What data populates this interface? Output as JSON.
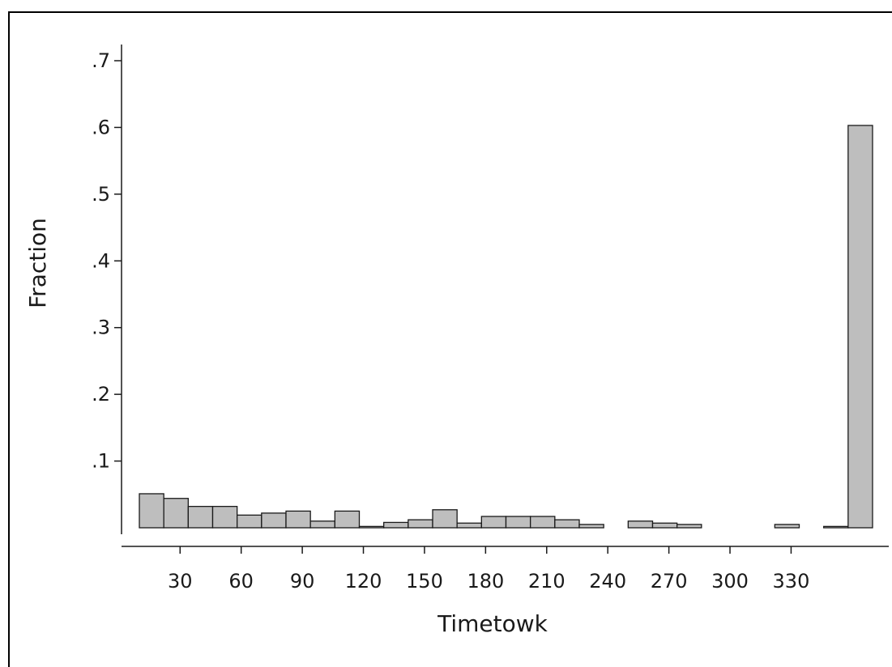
{
  "chart_data": {
    "type": "bar",
    "xlabel": "Timetowk",
    "ylabel": "Fraction",
    "bar_color": "#bebebe",
    "edge_color": "#1a1a1a",
    "xlim": [
      -20,
      375
    ],
    "ylim": [
      -0.025,
      0.72
    ],
    "x_ticks": [
      {
        "value": 30,
        "label": "30"
      },
      {
        "value": 60,
        "label": "60"
      },
      {
        "value": 90,
        "label": "90"
      },
      {
        "value": 120,
        "label": "120"
      },
      {
        "value": 150,
        "label": "150"
      },
      {
        "value": 180,
        "label": "180"
      },
      {
        "value": 210,
        "label": "210"
      },
      {
        "value": 240,
        "label": "240"
      },
      {
        "value": 270,
        "label": "270"
      },
      {
        "value": 300,
        "label": "300"
      },
      {
        "value": 330,
        "label": "330"
      }
    ],
    "y_ticks": [
      {
        "value": 0.1,
        "label": ".1"
      },
      {
        "value": 0.2,
        "label": ".2"
      },
      {
        "value": 0.3,
        "label": ".3"
      },
      {
        "value": 0.4,
        "label": ".4"
      },
      {
        "value": 0.5,
        "label": ".5"
      },
      {
        "value": 0.6,
        "label": ".6"
      },
      {
        "value": 0.7,
        "label": ".7"
      }
    ],
    "bins": [
      {
        "x0": 10,
        "x1": 22,
        "value": 0.051
      },
      {
        "x0": 22,
        "x1": 34,
        "value": 0.044
      },
      {
        "x0": 34,
        "x1": 46,
        "value": 0.032
      },
      {
        "x0": 46,
        "x1": 58,
        "value": 0.032
      },
      {
        "x0": 58,
        "x1": 70,
        "value": 0.019
      },
      {
        "x0": 70,
        "x1": 82,
        "value": 0.022
      },
      {
        "x0": 82,
        "x1": 94,
        "value": 0.025
      },
      {
        "x0": 94,
        "x1": 106,
        "value": 0.01
      },
      {
        "x0": 106,
        "x1": 118,
        "value": 0.025
      },
      {
        "x0": 118,
        "x1": 130,
        "value": 0.002
      },
      {
        "x0": 130,
        "x1": 142,
        "value": 0.008
      },
      {
        "x0": 142,
        "x1": 154,
        "value": 0.012
      },
      {
        "x0": 154,
        "x1": 166,
        "value": 0.027
      },
      {
        "x0": 166,
        "x1": 178,
        "value": 0.007
      },
      {
        "x0": 178,
        "x1": 190,
        "value": 0.017
      },
      {
        "x0": 190,
        "x1": 202,
        "value": 0.017
      },
      {
        "x0": 202,
        "x1": 214,
        "value": 0.017
      },
      {
        "x0": 214,
        "x1": 226,
        "value": 0.012
      },
      {
        "x0": 226,
        "x1": 238,
        "value": 0.005
      },
      {
        "x0": 250,
        "x1": 262,
        "value": 0.01
      },
      {
        "x0": 262,
        "x1": 274,
        "value": 0.007
      },
      {
        "x0": 274,
        "x1": 286,
        "value": 0.005
      },
      {
        "x0": 322,
        "x1": 334,
        "value": 0.005
      },
      {
        "x0": 346,
        "x1": 358,
        "value": 0.002
      },
      {
        "x0": 358,
        "x1": 370,
        "value": 0.603
      }
    ]
  }
}
